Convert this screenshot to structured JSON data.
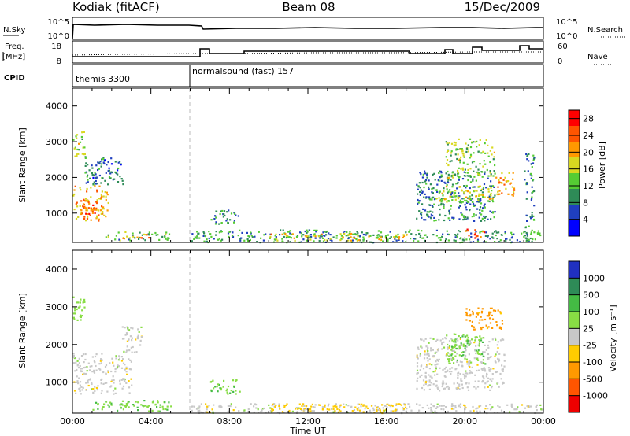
{
  "header": {
    "station": "Kodiak (fitACF)",
    "beam": "Beam 08",
    "date": "15/Dec/2009"
  },
  "noise_panel": {
    "left_label": "N.Sky",
    "right_label": "N.Search",
    "left_ticks": [
      "10^5",
      "10^0"
    ],
    "right_ticks": [
      "10^5",
      "10^0"
    ]
  },
  "freq_panel": {
    "left_label_line1": "Freq.",
    "left_label_line2": "[MHz]",
    "right_label": "Nave",
    "left_ticks": [
      "18",
      "8"
    ],
    "right_ticks": [
      "60",
      "0"
    ]
  },
  "cpid_panel": {
    "label": "CPID",
    "programs": [
      {
        "name": "themis 3300",
        "start_hour": 0,
        "end_hour": 6
      },
      {
        "name": "normalsound (fast) 157",
        "start_hour": 6,
        "end_hour": 24
      }
    ]
  },
  "power_panel": {
    "ylabel": "Slant Range [km]",
    "colorbar_label": "Power [dB]",
    "colorbar_ticks": [
      "28",
      "24",
      "20",
      "16",
      "12",
      "8",
      "4"
    ],
    "colors": [
      "#0000ff",
      "#1f3fbf",
      "#2e8b57",
      "#55cc33",
      "#d8d820",
      "#ff9900",
      "#ff5500",
      "#ff0000"
    ]
  },
  "velocity_panel": {
    "ylabel": "Slant Range [km]",
    "colorbar_label": "Velocity [m s⁻¹]",
    "colorbar_ticks": [
      "1000",
      "500",
      "100",
      "25",
      "-25",
      "-100",
      "-500",
      "-1000"
    ],
    "colors": [
      "#2030c0",
      "#2e8b57",
      "#44bb44",
      "#88dd44",
      "#c8c8c8",
      "#ffcc00",
      "#ff9900",
      "#ff5500",
      "#ee0000"
    ]
  },
  "x_axis": {
    "label": "Time UT",
    "ticks": [
      "00:00",
      "04:00",
      "08:00",
      "12:00",
      "16:00",
      "20:00",
      "00:00"
    ]
  },
  "chart_data": [
    {
      "type": "heatmap",
      "title": "Power",
      "xlabel": "Time UT",
      "ylabel": "Slant Range [km]",
      "xlim": [
        0,
        24
      ],
      "ylim": [
        180,
        4500
      ],
      "y_ticks": [
        1000,
        2000,
        3000,
        4000
      ],
      "colorbar": {
        "label": "Power [dB]",
        "range": [
          0,
          30
        ],
        "ticks": [
          4,
          8,
          12,
          16,
          20,
          24,
          28
        ]
      },
      "regions": [
        {
          "t": [
            0.0,
            1.8
          ],
          "r": [
            800,
            1800
          ],
          "value": 20
        },
        {
          "t": [
            0.4,
            1.2
          ],
          "r": [
            900,
            1400
          ],
          "value": 24
        },
        {
          "t": [
            0.0,
            0.6
          ],
          "r": [
            2600,
            3300
          ],
          "value": 14
        },
        {
          "t": [
            0.6,
            2.6
          ],
          "r": [
            1800,
            2600
          ],
          "value": 8
        },
        {
          "t": [
            1.5,
            5.0
          ],
          "r": [
            250,
            500
          ],
          "value": 12
        },
        {
          "t": [
            2.5,
            4.0
          ],
          "r": [
            300,
            450
          ],
          "value": 22
        },
        {
          "t": [
            6.0,
            24.0
          ],
          "r": [
            200,
            550
          ],
          "value": 10
        },
        {
          "t": [
            10.0,
            17.0
          ],
          "r": [
            250,
            450
          ],
          "value": 18
        },
        {
          "t": [
            7.0,
            8.5
          ],
          "r": [
            700,
            1100
          ],
          "value": 10
        },
        {
          "t": [
            17.5,
            21.5
          ],
          "r": [
            800,
            2200
          ],
          "value": 9
        },
        {
          "t": [
            18.5,
            21.5
          ],
          "r": [
            1300,
            1800
          ],
          "value": 16
        },
        {
          "t": [
            19.0,
            21.5
          ],
          "r": [
            2000,
            3100
          ],
          "value": 14
        },
        {
          "t": [
            20.0,
            21.0
          ],
          "r": [
            300,
            600
          ],
          "value": 24
        },
        {
          "t": [
            21.5,
            22.5
          ],
          "r": [
            1500,
            2200
          ],
          "value": 20
        },
        {
          "t": [
            23.0,
            23.5
          ],
          "r": [
            300,
            2700
          ],
          "value": 10
        }
      ]
    },
    {
      "type": "heatmap",
      "title": "Velocity",
      "xlabel": "Time UT",
      "ylabel": "Slant Range [km]",
      "xlim": [
        0,
        24
      ],
      "ylim": [
        180,
        4500
      ],
      "y_ticks": [
        1000,
        2000,
        3000,
        4000
      ],
      "colorbar": {
        "label": "Velocity [m s⁻¹]",
        "ticks": [
          1000,
          500,
          100,
          25,
          -25,
          -100,
          -500,
          -1000
        ]
      },
      "regions": [
        {
          "t": [
            0.0,
            3.0
          ],
          "r": [
            700,
            1800
          ],
          "value": 0
        },
        {
          "t": [
            0.0,
            0.6
          ],
          "r": [
            2600,
            3300
          ],
          "value": 60
        },
        {
          "t": [
            2.5,
            3.5
          ],
          "r": [
            1800,
            2500
          ],
          "value": 0
        },
        {
          "t": [
            1.0,
            5.0
          ],
          "r": [
            250,
            550
          ],
          "value": 80
        },
        {
          "t": [
            6.0,
            24.0
          ],
          "r": [
            200,
            450
          ],
          "value": 0
        },
        {
          "t": [
            10.0,
            17.0
          ],
          "r": [
            250,
            450
          ],
          "value": -60
        },
        {
          "t": [
            7.0,
            8.5
          ],
          "r": [
            700,
            1100
          ],
          "value": 80
        },
        {
          "t": [
            17.5,
            22.0
          ],
          "r": [
            800,
            2200
          ],
          "value": 0
        },
        {
          "t": [
            19.0,
            21.0
          ],
          "r": [
            1500,
            2300
          ],
          "value": 80
        },
        {
          "t": [
            20.0,
            22.0
          ],
          "r": [
            2400,
            3000
          ],
          "value": -200
        }
      ]
    }
  ]
}
